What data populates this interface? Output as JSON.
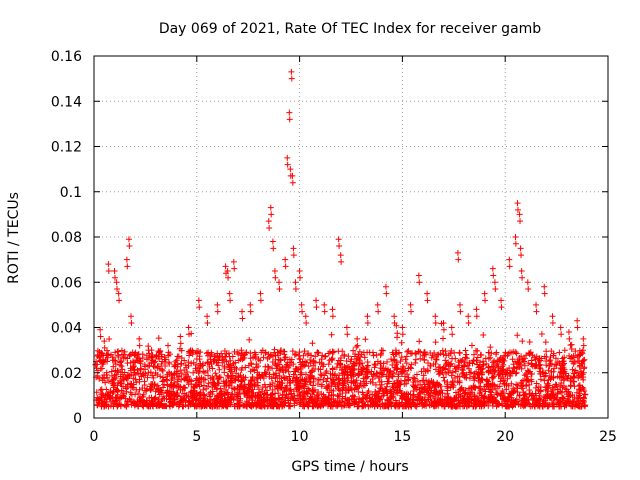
{
  "chart_data": {
    "type": "scatter",
    "title": "Day 069 of 2021, Rate Of TEC Index for receiver gamb",
    "xlabel": "GPS time / hours",
    "ylabel": "ROTI / TECUs",
    "xlim": [
      0,
      25
    ],
    "ylim": [
      0,
      0.16
    ],
    "xticks": [
      0,
      5,
      10,
      15,
      20,
      25
    ],
    "xtick_labels": [
      "0",
      "5",
      "10",
      "15",
      "20",
      "25"
    ],
    "yticks": [
      0,
      0.02,
      0.04,
      0.06,
      0.08,
      0.1,
      0.12,
      0.14,
      0.16
    ],
    "ytick_labels": [
      "0",
      "0.02",
      "0.04",
      "0.06",
      "0.08",
      "0.1",
      "0.12",
      "0.14",
      "0.16"
    ],
    "grid": true,
    "marker": "+",
    "color": "#ff0000",
    "series": [
      {
        "name": "ROTI",
        "description_of_density": "dense band between 0.005 and 0.03 TECUs across 0-24 h",
        "x": [
          0.1,
          0.3,
          0.5,
          0.7,
          1.0,
          1.1,
          1.2,
          1.6,
          1.7,
          1.8,
          2.2,
          2.8,
          3.3,
          3.6,
          4.2,
          4.6,
          5.1,
          5.5,
          6.0,
          6.4,
          6.5,
          6.6,
          6.8,
          7.2,
          7.6,
          8.1,
          8.5,
          8.6,
          8.7,
          8.8,
          9.0,
          9.3,
          9.4,
          9.5,
          9.55,
          9.6,
          9.65,
          9.7,
          9.8,
          10.0,
          10.1,
          10.3,
          10.8,
          11.2,
          11.6,
          11.9,
          12.0,
          12.3,
          12.8,
          13.3,
          13.8,
          14.2,
          14.6,
          15.0,
          15.4,
          15.8,
          16.2,
          16.6,
          17.0,
          17.4,
          17.7,
          17.8,
          18.2,
          18.6,
          19.0,
          19.4,
          19.5,
          19.8,
          20.2,
          20.5,
          20.6,
          20.7,
          20.75,
          20.8,
          21.1,
          21.5,
          21.9,
          22.3,
          22.7,
          23.1,
          23.5,
          23.8
        ],
        "y": [
          0.025,
          0.039,
          0.034,
          0.068,
          0.065,
          0.06,
          0.055,
          0.07,
          0.079,
          0.045,
          0.035,
          0.03,
          0.028,
          0.032,
          0.036,
          0.04,
          0.052,
          0.045,
          0.05,
          0.067,
          0.065,
          0.055,
          0.069,
          0.047,
          0.05,
          0.055,
          0.087,
          0.093,
          0.078,
          0.065,
          0.06,
          0.07,
          0.115,
          0.135,
          0.11,
          0.153,
          0.107,
          0.075,
          0.06,
          0.065,
          0.05,
          0.045,
          0.052,
          0.05,
          0.048,
          0.079,
          0.072,
          0.04,
          0.035,
          0.045,
          0.05,
          0.058,
          0.045,
          0.04,
          0.05,
          0.063,
          0.055,
          0.045,
          0.042,
          0.04,
          0.073,
          0.05,
          0.045,
          0.048,
          0.055,
          0.066,
          0.06,
          0.052,
          0.07,
          0.08,
          0.095,
          0.09,
          0.075,
          0.065,
          0.06,
          0.05,
          0.058,
          0.045,
          0.04,
          0.038,
          0.043,
          0.035
        ]
      }
    ]
  }
}
